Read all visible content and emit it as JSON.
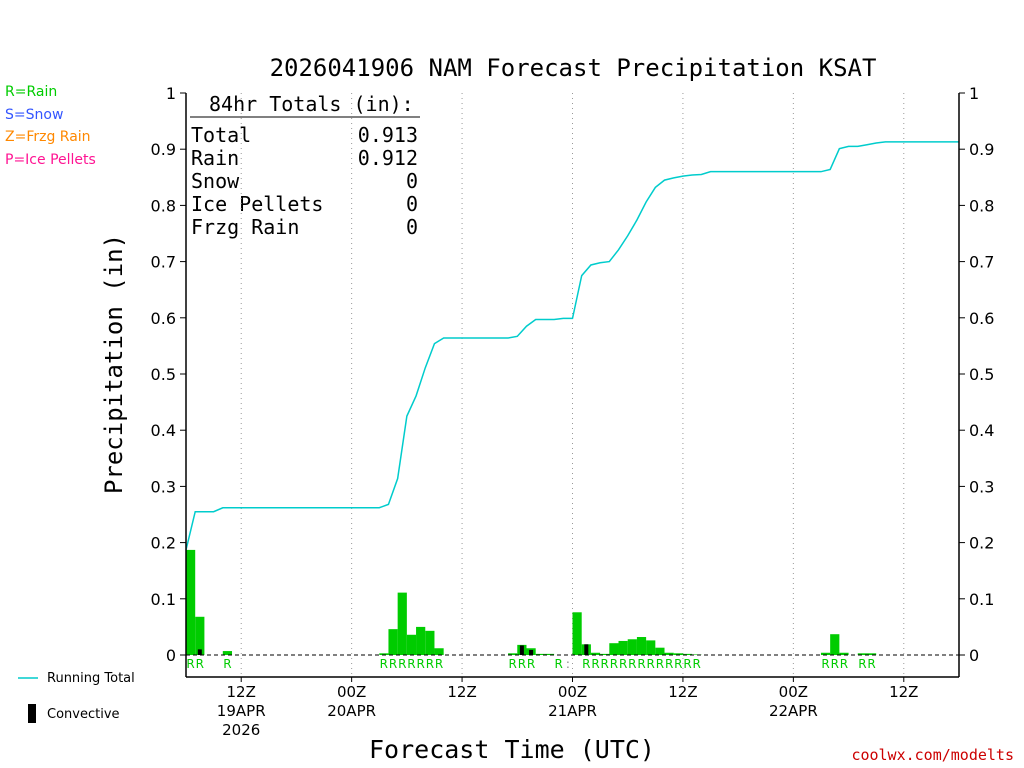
{
  "chart_data": {
    "type": "bar",
    "title": "2026041906 NAM Forecast Precipitation KSAT",
    "xlabel": "Forecast Time (UTC)",
    "ylabel": "Precipitation (in)",
    "ylim": [
      0,
      1
    ],
    "xlim_hours": [
      0,
      84
    ],
    "grid": "vertical dotted every 6h",
    "y_ticks": [
      {
        "v": 0,
        "label": "0"
      },
      {
        "v": 0.1,
        "label": "0.1"
      },
      {
        "v": 0.2,
        "label": "0.2"
      },
      {
        "v": 0.3,
        "label": "0.3"
      },
      {
        "v": 0.4,
        "label": "0.4"
      },
      {
        "v": 0.5,
        "label": "0.5"
      },
      {
        "v": 0.6,
        "label": "0.6"
      },
      {
        "v": 0.7,
        "label": "0.7"
      },
      {
        "v": 0.8,
        "label": "0.8"
      },
      {
        "v": 0.9,
        "label": "0.9"
      },
      {
        "v": 1,
        "label": "1"
      }
    ],
    "x_ticks": [
      {
        "hour": 6,
        "lines": [
          "12Z",
          "19APR",
          "2026"
        ]
      },
      {
        "hour": 18,
        "lines": [
          "00Z",
          "20APR"
        ]
      },
      {
        "hour": 30,
        "lines": [
          "12Z"
        ]
      },
      {
        "hour": 42,
        "lines": [
          "00Z",
          "21APR"
        ]
      },
      {
        "hour": 54,
        "lines": [
          "12Z"
        ]
      },
      {
        "hour": 66,
        "lines": [
          "00Z",
          "22APR"
        ]
      },
      {
        "hour": 78,
        "lines": [
          "12Z"
        ]
      }
    ],
    "grid_hours": [
      6,
      18,
      30,
      42,
      54,
      66,
      78
    ],
    "totals_box": {
      "heading": "84hr Totals (in):",
      "rows": [
        {
          "label": "Total",
          "value": "0.913"
        },
        {
          "label": "Rain",
          "value": "0.912"
        },
        {
          "label": "Snow",
          "value": "0"
        },
        {
          "label": "Ice Pellets",
          "value": "0"
        },
        {
          "label": "Frzg Rain",
          "value": "0"
        }
      ]
    },
    "type_legend": [
      {
        "text": "R=Rain",
        "color": "#00cc00"
      },
      {
        "text": "S=Snow",
        "color": "#3355ff"
      },
      {
        "text": "Z=Frzg Rain",
        "color": "#ff8800"
      },
      {
        "text": "P=Ice Pellets",
        "color": "#ff1493"
      }
    ],
    "series_legend": {
      "running_total": "Running Total",
      "convective": "Convective"
    },
    "colors": {
      "rain": "#00cc00",
      "running_total": "#00cccc",
      "convective": "#000000"
    },
    "series": [
      {
        "name": "Hourly Rain (in)",
        "x_hours": [
          1,
          2,
          5,
          22,
          23,
          24,
          25,
          26,
          27,
          28,
          36,
          37,
          38,
          39,
          40,
          43,
          44,
          45,
          46,
          47,
          48,
          49,
          50,
          51,
          52,
          53,
          54,
          55,
          56,
          70,
          71,
          72,
          74,
          75
        ],
        "values": [
          0.187,
          0.068,
          0.007,
          0.003,
          0.046,
          0.111,
          0.036,
          0.05,
          0.043,
          0.012,
          0.003,
          0.018,
          0.012,
          0.002,
          0.002,
          0.076,
          0.019,
          0.004,
          0.002,
          0.021,
          0.025,
          0.028,
          0.032,
          0.026,
          0.013,
          0.004,
          0.003,
          0.002,
          0.001,
          0.004,
          0.037,
          0.004,
          0.003,
          0.003
        ]
      },
      {
        "name": "Convective (in)",
        "x_hours": [
          2,
          37,
          38,
          44
        ],
        "values": [
          0.01,
          0.017,
          0.009,
          0.019
        ]
      },
      {
        "name": "Running Total (in)",
        "x_hours": [
          0,
          1,
          2,
          3,
          4,
          5,
          20,
          21,
          22,
          23,
          24,
          25,
          26,
          27,
          28,
          29,
          30,
          31,
          32,
          33,
          34,
          35,
          36,
          37,
          38,
          39,
          40,
          41,
          42,
          43,
          44,
          45,
          46,
          47,
          48,
          49,
          50,
          51,
          52,
          53,
          54,
          55,
          56,
          57,
          58,
          59,
          60,
          61,
          62,
          63,
          64,
          65,
          66,
          67,
          68,
          69,
          70,
          71,
          72,
          73,
          74,
          75,
          76,
          77,
          78,
          84
        ],
        "values": [
          0.187,
          0.255,
          0.255,
          0.255,
          0.262,
          0.262,
          0.262,
          0.262,
          0.268,
          0.314,
          0.425,
          0.461,
          0.511,
          0.554,
          0.564,
          0.564,
          0.564,
          0.564,
          0.564,
          0.564,
          0.564,
          0.564,
          0.567,
          0.585,
          0.597,
          0.597,
          0.597,
          0.599,
          0.599,
          0.675,
          0.694,
          0.698,
          0.7,
          0.721,
          0.746,
          0.774,
          0.806,
          0.832,
          0.845,
          0.849,
          0.852,
          0.854,
          0.855,
          0.86,
          0.86,
          0.86,
          0.86,
          0.86,
          0.86,
          0.86,
          0.86,
          0.86,
          0.86,
          0.86,
          0.86,
          0.86,
          0.864,
          0.901,
          0.905,
          0.905,
          0.908,
          0.911,
          0.913,
          0.913,
          0.913,
          0.913
        ]
      }
    ],
    "type_codes": {
      "letter": "R",
      "hours": [
        1,
        2,
        5,
        22,
        23,
        24,
        25,
        26,
        27,
        28,
        36,
        37,
        38,
        41,
        44,
        45,
        46,
        47,
        48,
        49,
        50,
        51,
        52,
        53,
        54,
        55,
        56,
        70,
        71,
        72,
        74,
        75
      ],
      "marker_hours": [
        42
      ]
    },
    "credit": "coolwx.com/modelts"
  }
}
